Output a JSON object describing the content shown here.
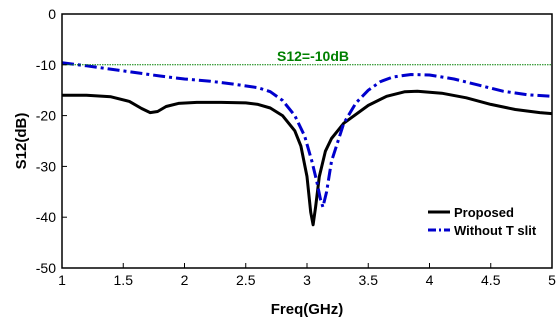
{
  "chart_data": {
    "type": "line",
    "xlabel": "Freq(GHz)",
    "ylabel": "S12(dB)",
    "xlim": [
      1,
      5
    ],
    "ylim": [
      -50,
      0
    ],
    "x_ticks": [
      "1",
      "1.5",
      "2",
      "2.5",
      "3",
      "3.5",
      "4",
      "4.5",
      "5"
    ],
    "y_ticks": [
      "0",
      "-10",
      "-20",
      "-30",
      "-40",
      "-50"
    ],
    "grid": false,
    "legend_position": "bottom-right",
    "threshold": {
      "label": "S12=-10dB",
      "value": -10,
      "color": "#008000"
    },
    "series": [
      {
        "name": "Proposed",
        "color": "#000000",
        "style": "solid",
        "points": [
          [
            1.0,
            -16.0
          ],
          [
            1.2,
            -16.0
          ],
          [
            1.4,
            -16.3
          ],
          [
            1.55,
            -17.2
          ],
          [
            1.65,
            -18.6
          ],
          [
            1.72,
            -19.4
          ],
          [
            1.78,
            -19.2
          ],
          [
            1.85,
            -18.2
          ],
          [
            1.95,
            -17.6
          ],
          [
            2.1,
            -17.4
          ],
          [
            2.3,
            -17.4
          ],
          [
            2.5,
            -17.5
          ],
          [
            2.6,
            -17.8
          ],
          [
            2.7,
            -18.5
          ],
          [
            2.8,
            -20.0
          ],
          [
            2.9,
            -23.0
          ],
          [
            2.95,
            -26.0
          ],
          [
            3.0,
            -32.0
          ],
          [
            3.03,
            -39.0
          ],
          [
            3.05,
            -41.5
          ],
          [
            3.07,
            -38.0
          ],
          [
            3.1,
            -32.0
          ],
          [
            3.15,
            -27.0
          ],
          [
            3.2,
            -24.5
          ],
          [
            3.3,
            -21.5
          ],
          [
            3.5,
            -18.0
          ],
          [
            3.65,
            -16.2
          ],
          [
            3.8,
            -15.3
          ],
          [
            3.9,
            -15.2
          ],
          [
            4.1,
            -15.6
          ],
          [
            4.3,
            -16.5
          ],
          [
            4.5,
            -17.8
          ],
          [
            4.7,
            -18.8
          ],
          [
            4.9,
            -19.4
          ],
          [
            5.0,
            -19.6
          ]
        ]
      },
      {
        "name": "Without T slit",
        "color": "#0000CD",
        "style": "dashdot",
        "points": [
          [
            1.0,
            -9.6
          ],
          [
            1.2,
            -10.2
          ],
          [
            1.5,
            -11.2
          ],
          [
            1.8,
            -12.2
          ],
          [
            2.0,
            -12.8
          ],
          [
            2.2,
            -13.2
          ],
          [
            2.4,
            -13.8
          ],
          [
            2.6,
            -14.5
          ],
          [
            2.7,
            -15.3
          ],
          [
            2.8,
            -17.0
          ],
          [
            2.9,
            -20.0
          ],
          [
            2.98,
            -24.0
          ],
          [
            3.04,
            -29.0
          ],
          [
            3.08,
            -33.0
          ],
          [
            3.11,
            -36.5
          ],
          [
            3.13,
            -38.0
          ],
          [
            3.16,
            -35.0
          ],
          [
            3.2,
            -29.0
          ],
          [
            3.3,
            -21.5
          ],
          [
            3.4,
            -17.5
          ],
          [
            3.5,
            -15.0
          ],
          [
            3.6,
            -13.3
          ],
          [
            3.7,
            -12.4
          ],
          [
            3.85,
            -11.9
          ],
          [
            4.0,
            -12.0
          ],
          [
            4.2,
            -12.8
          ],
          [
            4.4,
            -14.0
          ],
          [
            4.6,
            -15.2
          ],
          [
            4.8,
            -15.9
          ],
          [
            5.0,
            -16.2
          ]
        ]
      }
    ]
  }
}
